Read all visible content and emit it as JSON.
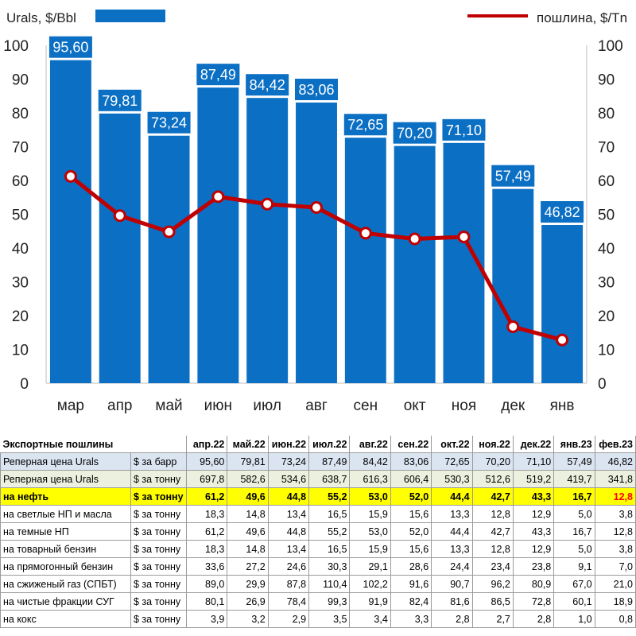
{
  "chart_data": {
    "type": "bar",
    "categories": [
      "мар",
      "апр",
      "май",
      "июн",
      "июл",
      "авг",
      "сен",
      "окт",
      "ноя",
      "дек",
      "янв"
    ],
    "series": [
      {
        "name": "Urals, $/Bbl",
        "type": "bar",
        "color": "#0b6fc4",
        "values": [
          95.6,
          79.81,
          73.24,
          87.49,
          84.42,
          83.06,
          72.65,
          70.2,
          71.1,
          57.49,
          46.82
        ],
        "labels": [
          "95,60",
          "79,81",
          "73,24",
          "87,49",
          "84,42",
          "83,06",
          "72,65",
          "70,20",
          "71,10",
          "57,49",
          "46,82"
        ]
      },
      {
        "name": "пошлина, $/Tn",
        "type": "line",
        "color": "#c00000",
        "values": [
          61.2,
          49.6,
          44.8,
          55.2,
          53.0,
          52.0,
          44.4,
          42.7,
          43.3,
          16.7,
          12.8
        ]
      }
    ],
    "ylim": [
      0,
      100
    ],
    "yticks": [
      "0",
      "10",
      "20",
      "30",
      "40",
      "50",
      "60",
      "70",
      "80",
      "90",
      "100"
    ],
    "y2ticks": [
      "0",
      "10",
      "20",
      "30",
      "40",
      "50",
      "60",
      "70",
      "80",
      "90",
      "100"
    ],
    "legend": "top"
  },
  "table": {
    "title": "Экспортные пошлины",
    "headers": [
      "апр.22",
      "май.22",
      "июн.22",
      "июл.22",
      "авг.22",
      "сен.22",
      "окт.22",
      "ноя.22",
      "дек.22",
      "янв.23",
      "фев.23"
    ],
    "rows": [
      {
        "label": "Реперная цена Urals",
        "unit": "$ за барр",
        "values": [
          "95,60",
          "79,81",
          "73,24",
          "87,49",
          "84,42",
          "83,06",
          "72,65",
          "70,20",
          "71,10",
          "57,49",
          "46,82"
        ]
      },
      {
        "label": "Реперная цена Urals",
        "unit": "$ за тонну",
        "values": [
          "697,8",
          "582,6",
          "534,6",
          "638,7",
          "616,3",
          "606,4",
          "530,3",
          "512,6",
          "519,2",
          "419,7",
          "341,8"
        ]
      },
      {
        "label": "на нефть",
        "unit": "$ за тонну",
        "values": [
          "61,2",
          "49,6",
          "44,8",
          "55,2",
          "53,0",
          "52,0",
          "44,4",
          "42,7",
          "43,3",
          "16,7",
          "12,8"
        ]
      },
      {
        "label": "на светлые НП и масла",
        "unit": "$ за тонну",
        "values": [
          "18,3",
          "14,8",
          "13,4",
          "16,5",
          "15,9",
          "15,6",
          "13,3",
          "12,8",
          "12,9",
          "5,0",
          "3,8"
        ]
      },
      {
        "label": "на темные НП",
        "unit": "$ за тонну",
        "values": [
          "61,2",
          "49,6",
          "44,8",
          "55,2",
          "53,0",
          "52,0",
          "44,4",
          "42,7",
          "43,3",
          "16,7",
          "12,8"
        ]
      },
      {
        "label": "на товарный бензин",
        "unit": "$ за тонну",
        "values": [
          "18,3",
          "14,8",
          "13,4",
          "16,5",
          "15,9",
          "15,6",
          "13,3",
          "12,8",
          "12,9",
          "5,0",
          "3,8"
        ]
      },
      {
        "label": "на прямогонный бензин",
        "unit": "$ за тонну",
        "values": [
          "33,6",
          "27,2",
          "24,6",
          "30,3",
          "29,1",
          "28,6",
          "24,4",
          "23,4",
          "23,8",
          "9,1",
          "7,0"
        ]
      },
      {
        "label": "на сжиженый газ (СПБТ)",
        "unit": "$ за тонну",
        "values": [
          "89,0",
          "29,9",
          "87,8",
          "110,4",
          "102,2",
          "91,6",
          "90,7",
          "96,2",
          "80,9",
          "67,0",
          "21,0"
        ]
      },
      {
        "label": "на чистые фракции СУГ",
        "unit": "$ за тонну",
        "values": [
          "80,1",
          "26,9",
          "78,4",
          "99,3",
          "91,9",
          "82,4",
          "81,6",
          "86,5",
          "72,8",
          "60,1",
          "18,9"
        ]
      },
      {
        "label": "на кокс",
        "unit": "$ за тонну",
        "values": [
          "3,9",
          "3,2",
          "2,9",
          "3,5",
          "3,4",
          "3,3",
          "2,8",
          "2,7",
          "2,8",
          "1,0",
          "0,8"
        ]
      }
    ]
  }
}
